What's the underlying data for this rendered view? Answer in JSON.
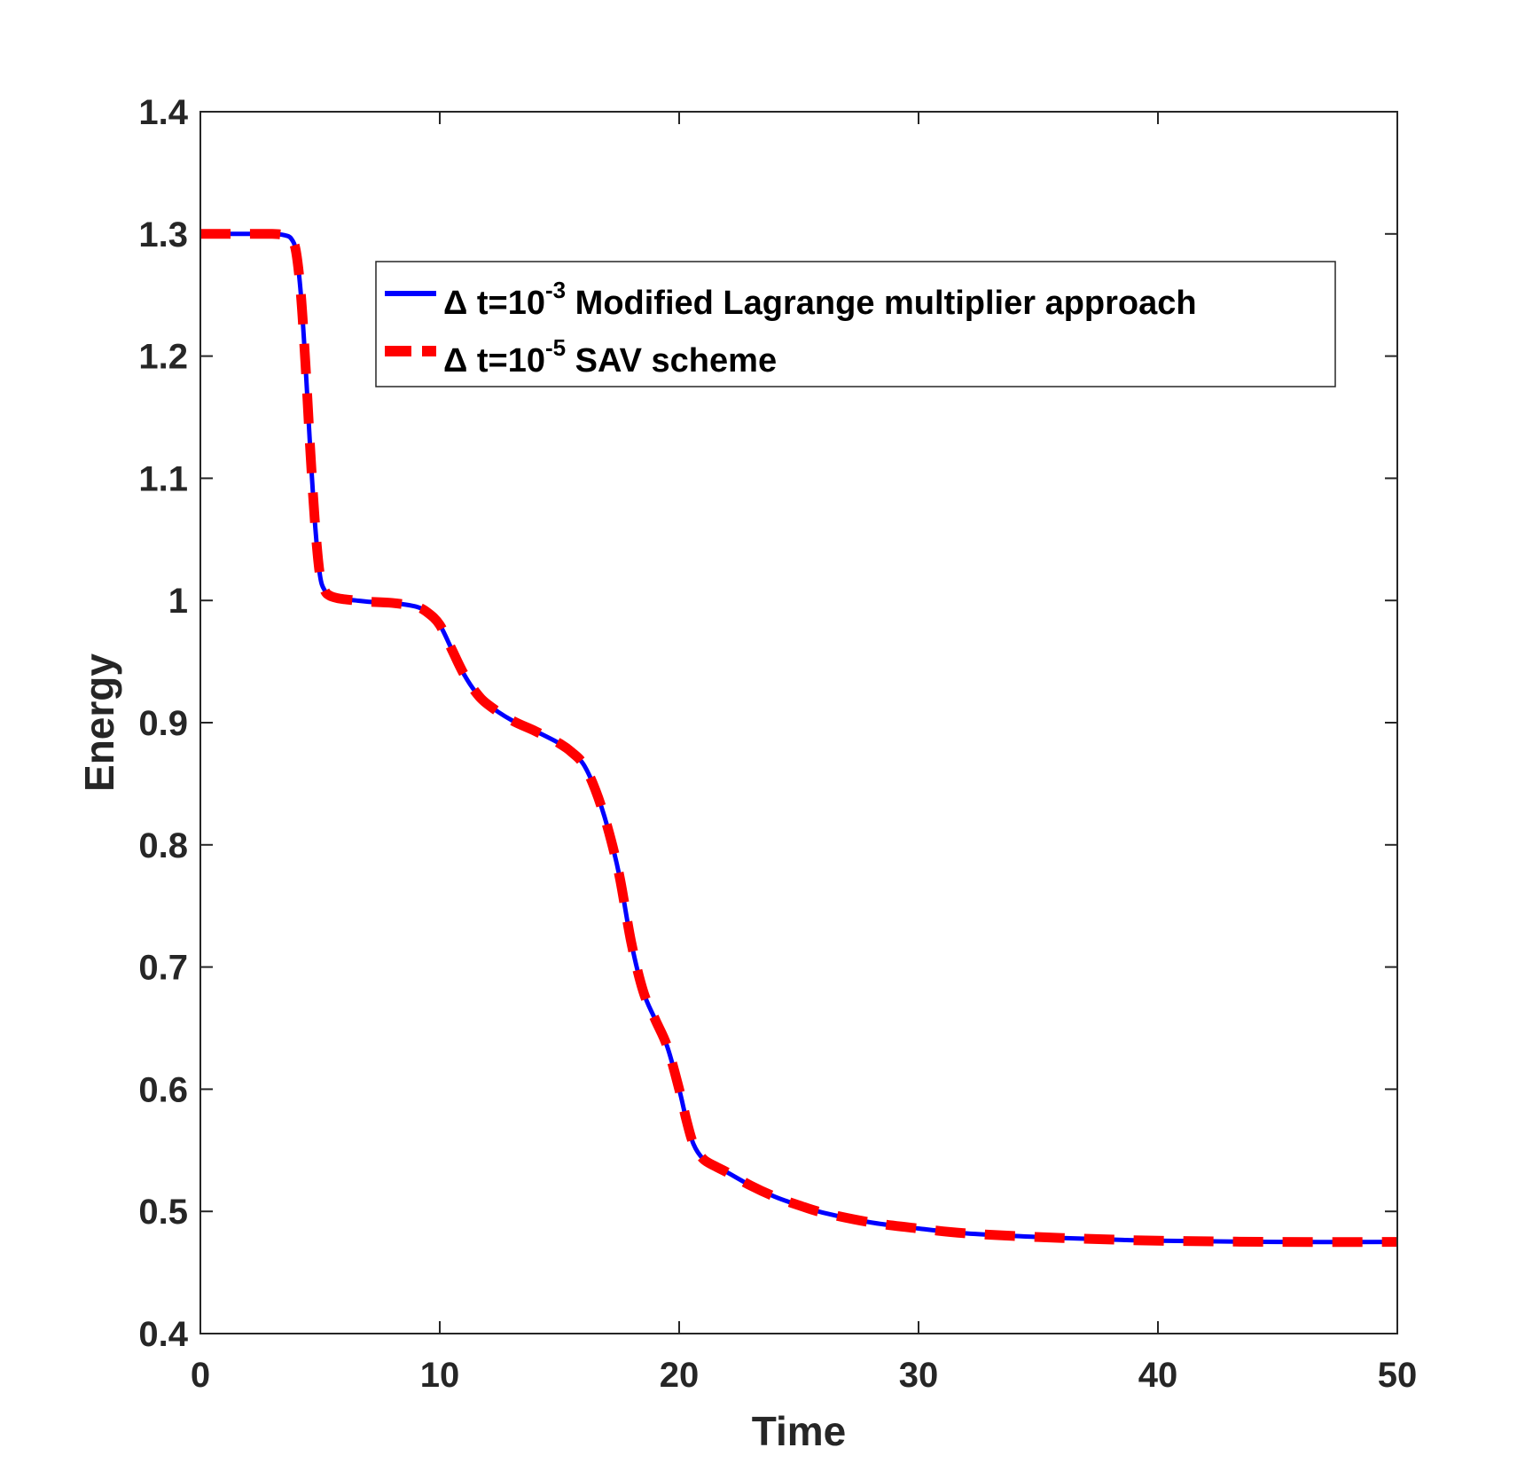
{
  "chart_data": {
    "type": "line",
    "title": "",
    "xlabel": "Time",
    "ylabel": "Energy",
    "xlim": [
      0,
      50
    ],
    "ylim": [
      0.4,
      1.4
    ],
    "xticks": [
      "0",
      "10",
      "20",
      "30",
      "40",
      "50"
    ],
    "yticks": [
      "0.4",
      "0.5",
      "0.6",
      "0.7",
      "0.8",
      "0.9",
      "1",
      "1.1",
      "1.2",
      "1.3",
      "1.4"
    ],
    "grid": false,
    "legend_position": "top-right",
    "series": [
      {
        "name_parts": {
          "prefix": "Δ t=10",
          "exp": "-3",
          "suffix": " Modified Lagrange multiplier approach"
        },
        "color": "#0000ff",
        "style": "solid",
        "x": [
          0,
          1,
          2,
          3,
          3.5,
          3.8,
          4.0,
          4.2,
          4.4,
          4.6,
          4.8,
          5.0,
          5.2,
          5.4,
          5.7,
          6.0,
          6.5,
          7,
          8,
          9,
          9.5,
          10,
          10.5,
          11,
          11.5,
          12,
          13,
          14,
          15,
          15.5,
          16,
          16.5,
          17,
          17.5,
          18,
          18.5,
          19,
          19.5,
          20,
          20.3,
          20.6,
          21,
          21.5,
          22,
          23,
          24,
          25,
          26,
          28,
          30,
          32,
          35,
          38,
          40,
          45,
          50
        ],
        "y": [
          1.3,
          1.3,
          1.3,
          1.3,
          1.299,
          1.296,
          1.285,
          1.25,
          1.19,
          1.12,
          1.06,
          1.02,
          1.008,
          1.004,
          1.002,
          1.001,
          1.0,
          0.999,
          0.998,
          0.995,
          0.99,
          0.98,
          0.96,
          0.94,
          0.925,
          0.915,
          0.902,
          0.893,
          0.883,
          0.876,
          0.866,
          0.845,
          0.815,
          0.775,
          0.72,
          0.68,
          0.657,
          0.635,
          0.6,
          0.575,
          0.555,
          0.543,
          0.537,
          0.532,
          0.521,
          0.512,
          0.505,
          0.499,
          0.491,
          0.486,
          0.482,
          0.479,
          0.477,
          0.476,
          0.475,
          0.475
        ]
      },
      {
        "name_parts": {
          "prefix": "Δ t=10",
          "exp": "-5",
          "suffix": " SAV  scheme"
        },
        "color": "#ff0000",
        "style": "dashed",
        "x": [
          0,
          1,
          2,
          3,
          3.5,
          3.8,
          4.0,
          4.2,
          4.4,
          4.6,
          4.8,
          5.0,
          5.2,
          5.4,
          5.7,
          6.0,
          6.5,
          7,
          8,
          9,
          9.5,
          10,
          10.5,
          11,
          11.5,
          12,
          13,
          14,
          15,
          15.5,
          16,
          16.5,
          17,
          17.5,
          18,
          18.5,
          19,
          19.5,
          20,
          20.3,
          20.6,
          21,
          21.5,
          22,
          23,
          24,
          25,
          26,
          28,
          30,
          32,
          35,
          38,
          40,
          45,
          50
        ],
        "y": [
          1.3,
          1.3,
          1.3,
          1.3,
          1.299,
          1.296,
          1.285,
          1.25,
          1.19,
          1.12,
          1.06,
          1.02,
          1.008,
          1.004,
          1.002,
          1.001,
          1.0,
          0.999,
          0.998,
          0.995,
          0.99,
          0.98,
          0.96,
          0.94,
          0.925,
          0.915,
          0.902,
          0.893,
          0.883,
          0.876,
          0.866,
          0.845,
          0.815,
          0.775,
          0.72,
          0.68,
          0.657,
          0.635,
          0.6,
          0.575,
          0.555,
          0.543,
          0.537,
          0.532,
          0.521,
          0.512,
          0.505,
          0.499,
          0.491,
          0.486,
          0.482,
          0.479,
          0.477,
          0.476,
          0.475,
          0.475
        ]
      }
    ]
  }
}
